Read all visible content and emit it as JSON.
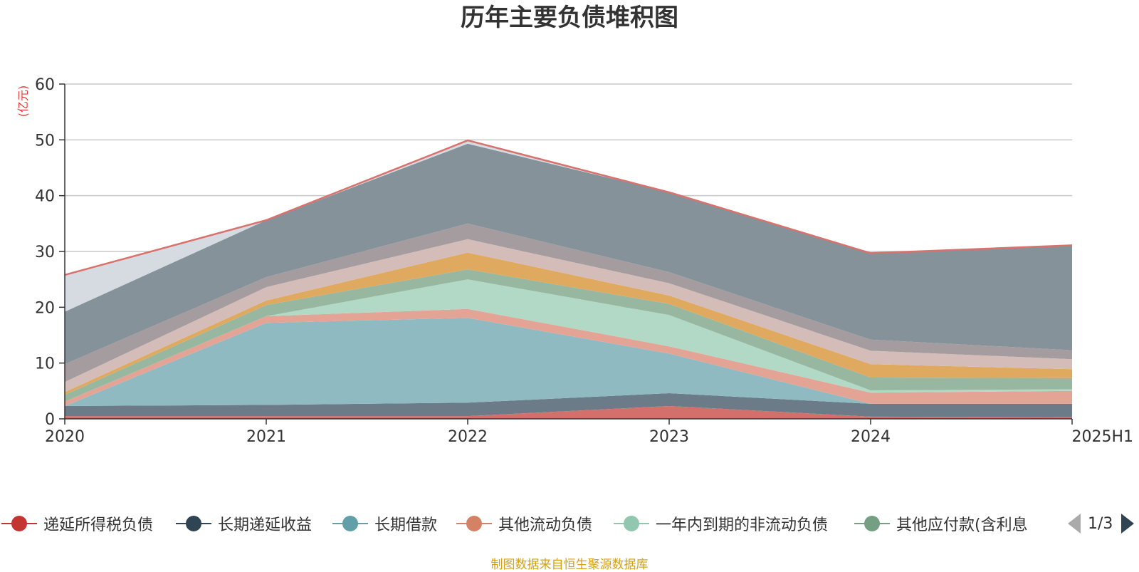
{
  "chart_data": {
    "type": "area",
    "title": "历年主要负债堆积图",
    "ylabel": "(亿元)",
    "categories": [
      "2020",
      "2021",
      "2022",
      "2023",
      "2024",
      "2025H1"
    ],
    "ylim": [
      0,
      60
    ],
    "yticks": [
      0,
      10,
      20,
      30,
      40,
      50,
      60
    ],
    "stacked": true,
    "grid": true,
    "legend_position": "bottom",
    "legend_page": "1/3",
    "series": [
      {
        "name": "递延所得税负债",
        "color": "#d4706c",
        "values": [
          0.5,
          0.5,
          0.5,
          2.3,
          0.4,
          0.3
        ]
      },
      {
        "name": "长期递延收益",
        "color": "#6b7c88",
        "values": [
          1.8,
          2.0,
          2.4,
          2.3,
          2.3,
          2.4
        ]
      },
      {
        "name": "长期借款",
        "color": "#8fbac1",
        "values": [
          0.0,
          14.7,
          15.2,
          7.1,
          0.0,
          0.0
        ]
      },
      {
        "name": "其他流动负债",
        "color": "#e3a496",
        "values": [
          0.8,
          1.2,
          1.6,
          1.3,
          2.0,
          2.3
        ]
      },
      {
        "name": "一年内到期的非流动负债",
        "color": "#b2d8c6",
        "values": [
          0.0,
          0.0,
          5.3,
          5.6,
          0.4,
          0.3
        ]
      },
      {
        "name": "其他应付款(含利息",
        "color": "#98b7a0",
        "values": [
          1.2,
          2.0,
          1.8,
          2.0,
          2.3,
          2.0
        ]
      },
      {
        "name": "",
        "color": "#dfa95f",
        "values": [
          0.5,
          0.8,
          3.0,
          1.5,
          2.4,
          1.6
        ]
      },
      {
        "name": "",
        "color": "#d4bdb8",
        "values": [
          1.8,
          2.4,
          2.4,
          2.2,
          2.4,
          1.8
        ]
      },
      {
        "name": "",
        "color": "#a49c9f",
        "values": [
          3.2,
          1.8,
          2.8,
          2.0,
          2.0,
          1.6
        ]
      },
      {
        "name": "",
        "color": "#85929a",
        "values": [
          9.4,
          10.2,
          14.3,
          14.3,
          15.5,
          18.8
        ]
      },
      {
        "name": "",
        "color": "#d5dbe1",
        "values": [
          6.6,
          0.0,
          0.6,
          0.0,
          0.0,
          0.0
        ]
      },
      {
        "name": "",
        "color": "#d9716c",
        "values": [
          0.0,
          0.0,
          0.0,
          0.0,
          0.0,
          0.0
        ]
      }
    ]
  },
  "source_note": "制图数据来自恒生聚源数据库"
}
